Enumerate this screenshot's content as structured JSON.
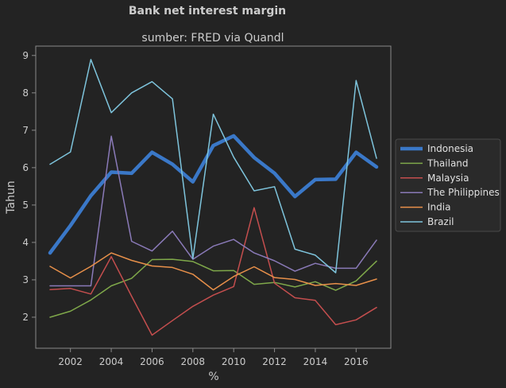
{
  "chart_data": {
    "type": "line",
    "title": "Bank net interest margin",
    "subtitle": "sumber: FRED via Quandl",
    "xlabel": "%",
    "ylabel": "Tahun",
    "xlim": [
      2000.3,
      2017.7
    ],
    "ylim": [
      1.17,
      9.25
    ],
    "xticks": [
      2002,
      2004,
      2006,
      2008,
      2010,
      2012,
      2014,
      2016
    ],
    "yticks": [
      2,
      3,
      4,
      5,
      6,
      7,
      8,
      9
    ],
    "legend_position": "center-right",
    "grid": false,
    "x": [
      2001,
      2002,
      2003,
      2004,
      2005,
      2006,
      2007,
      2008,
      2009,
      2010,
      2011,
      2012,
      2013,
      2014,
      2015,
      2016,
      2017
    ],
    "series": [
      {
        "name": "Indonesia",
        "color": "#3a78c8",
        "width": 4.5,
        "values": [
          3.72,
          4.45,
          5.25,
          5.88,
          5.85,
          6.41,
          6.09,
          5.62,
          6.59,
          6.85,
          6.27,
          5.85,
          5.23,
          5.68,
          5.69,
          6.41,
          6.02
        ]
      },
      {
        "name": "Thailand",
        "color": "#7fa84a",
        "width": 1.5,
        "values": [
          2.0,
          2.16,
          2.46,
          2.84,
          3.04,
          3.54,
          3.55,
          3.49,
          3.24,
          3.25,
          2.88,
          2.93,
          2.81,
          2.95,
          2.72,
          2.97,
          3.5
        ]
      },
      {
        "name": "Malaysia",
        "color": "#c44e4e",
        "width": 1.5,
        "values": [
          2.74,
          2.77,
          2.62,
          3.62,
          2.56,
          1.52,
          1.91,
          2.29,
          2.59,
          2.82,
          4.93,
          2.91,
          2.52,
          2.45,
          1.8,
          1.93,
          2.26
        ]
      },
      {
        "name": "The Philippines",
        "color": "#8a7ab8",
        "width": 1.5,
        "values": [
          2.84,
          2.84,
          2.84,
          6.84,
          4.03,
          3.77,
          4.3,
          3.55,
          3.9,
          4.08,
          3.72,
          3.51,
          3.23,
          3.44,
          3.31,
          3.31,
          4.06
        ]
      },
      {
        "name": "India",
        "color": "#e8904a",
        "width": 1.5,
        "values": [
          3.36,
          3.05,
          3.36,
          3.72,
          3.52,
          3.37,
          3.33,
          3.15,
          2.73,
          3.09,
          3.35,
          3.06,
          3.01,
          2.85,
          2.9,
          2.85,
          3.02
        ]
      },
      {
        "name": "Brazil",
        "color": "#7ec4dc",
        "width": 1.5,
        "values": [
          6.09,
          6.42,
          8.89,
          7.47,
          8.0,
          8.3,
          7.84,
          3.57,
          7.43,
          6.28,
          5.38,
          5.49,
          3.82,
          3.66,
          3.19,
          8.33,
          6.25
        ]
      }
    ]
  }
}
